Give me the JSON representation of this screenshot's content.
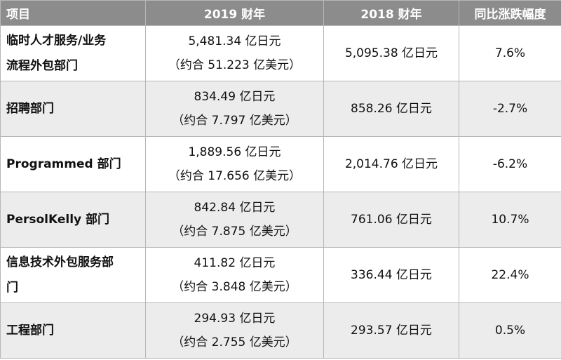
{
  "table": {
    "headers": [
      "项目",
      "2019 财年",
      "2018 财年",
      "同比涨跌幅度"
    ],
    "rows": [
      {
        "name": [
          "临时人才服务/业务",
          "流程外包部门"
        ],
        "fy2019": "5,481.34 亿日元",
        "fy2019_usd": "（约合 51.223 亿美元）",
        "fy2018": "5,095.38 亿日元",
        "change": "7.6%"
      },
      {
        "name": [
          "招聘部门"
        ],
        "fy2019": "834.49 亿日元",
        "fy2019_usd": "（约合 7.797 亿美元）",
        "fy2018": "858.26 亿日元",
        "change": "-2.7%"
      },
      {
        "name": [
          "Programmed 部门"
        ],
        "fy2019": "1,889.56 亿日元",
        "fy2019_usd": "（约合 17.656 亿美元）",
        "fy2018": "2,014.76 亿日元",
        "change": "-6.2%"
      },
      {
        "name": [
          "PersolKelly 部门"
        ],
        "fy2019": "842.84 亿日元",
        "fy2019_usd": "（约合 7.875 亿美元）",
        "fy2018": "761.06 亿日元",
        "change": "10.7%"
      },
      {
        "name": [
          "信息技术外包服务部",
          "门"
        ],
        "fy2019": "411.82 亿日元",
        "fy2019_usd": "（约合 3.848 亿美元）",
        "fy2018": "336.44 亿日元",
        "change": "22.4%"
      },
      {
        "name": [
          "工程部门"
        ],
        "fy2019": "294.93 亿日元",
        "fy2019_usd": "（约合 2.755 亿美元）",
        "fy2018": "293.57 亿日元",
        "change": "0.5%"
      }
    ]
  }
}
